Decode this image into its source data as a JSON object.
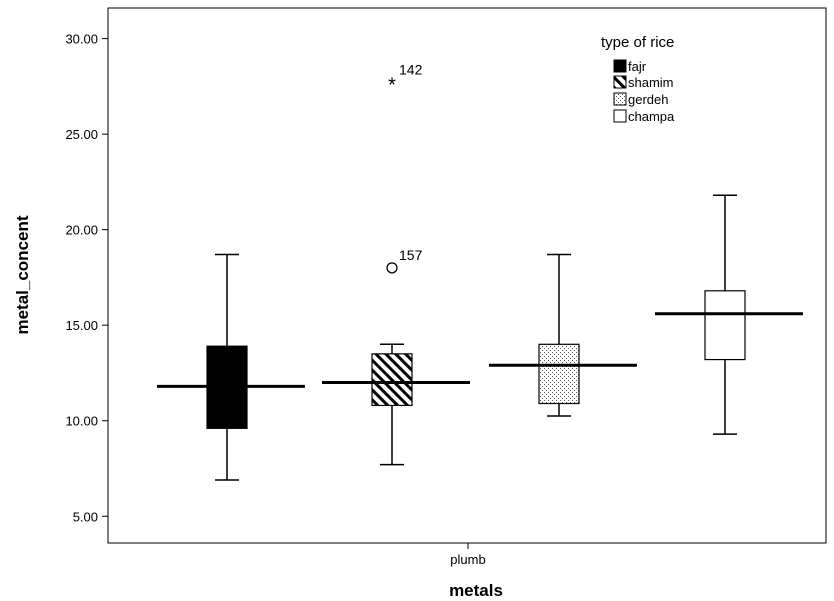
{
  "chart_data": {
    "type": "boxplot",
    "xlabel": "metals",
    "ylabel": "metal_concent",
    "categories": [
      "plumb"
    ],
    "ylim": [
      3.6,
      31.6
    ],
    "yticks": [
      "5.00",
      "10.00",
      "15.00",
      "20.00",
      "25.00",
      "30.00"
    ],
    "ytick_values": [
      5,
      10,
      15,
      20,
      25,
      30
    ],
    "grid": false,
    "legend": {
      "title": "type of rice",
      "position": "top-right"
    },
    "series": [
      {
        "name": "fajr",
        "pattern": "solid-black",
        "min": 6.9,
        "q1": 9.6,
        "median": 11.8,
        "q3": 13.9,
        "max": 18.7,
        "outliers": []
      },
      {
        "name": "shamim",
        "pattern": "diagonal-hatch",
        "min": 7.7,
        "q1": 10.8,
        "median": 12.0,
        "q3": 13.5,
        "max": 14.0,
        "outliers": [
          {
            "value": 27.7,
            "label": "142",
            "marker": "star"
          },
          {
            "value": 18.0,
            "label": "157",
            "marker": "circle"
          }
        ]
      },
      {
        "name": "gerdeh",
        "pattern": "dotted",
        "min": 10.25,
        "q1": 10.9,
        "median": 12.9,
        "q3": 14.0,
        "max": 18.7,
        "outliers": []
      },
      {
        "name": "champa",
        "pattern": "white",
        "min": 9.3,
        "q1": 13.2,
        "median": 15.6,
        "q3": 16.8,
        "max": 21.8,
        "outliers": []
      }
    ]
  }
}
